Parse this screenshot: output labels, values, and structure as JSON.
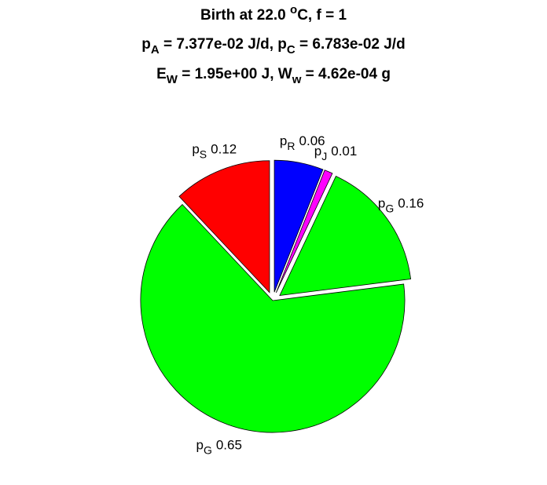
{
  "chart_data": {
    "type": "pie",
    "title_lines": [
      [
        {
          "text": "Birth at 22.0 "
        },
        {
          "text": "o",
          "shift": "sup"
        },
        {
          "text": "C, f = 1"
        }
      ],
      [
        {
          "text": "p"
        },
        {
          "text": "A",
          "shift": "sub"
        },
        {
          "text": " = 7.377e-02 J/d, p"
        },
        {
          "text": "C",
          "shift": "sub"
        },
        {
          "text": " = 6.783e-02 J/d"
        }
      ],
      [
        {
          "text": "E"
        },
        {
          "text": "W",
          "shift": "sub"
        },
        {
          "text": " = 1.95e+00 J, W"
        },
        {
          "text": "w",
          "shift": "sub"
        },
        {
          "text": " = 4.62e-04 g"
        }
      ]
    ],
    "categories": [
      {
        "base": "p",
        "sub": "R"
      },
      {
        "base": "p",
        "sub": "J"
      },
      {
        "base": "p",
        "sub": "G"
      },
      {
        "base": "p",
        "sub": "G"
      },
      {
        "base": "p",
        "sub": "S"
      }
    ],
    "values": [
      0.06,
      0.01,
      0.16,
      0.65,
      0.12
    ],
    "colors": [
      "#0000ff",
      "#ff00ff",
      "#00ff00",
      "#00ff00",
      "#ff0000"
    ],
    "explode": [
      true,
      true,
      true,
      false,
      true
    ]
  }
}
